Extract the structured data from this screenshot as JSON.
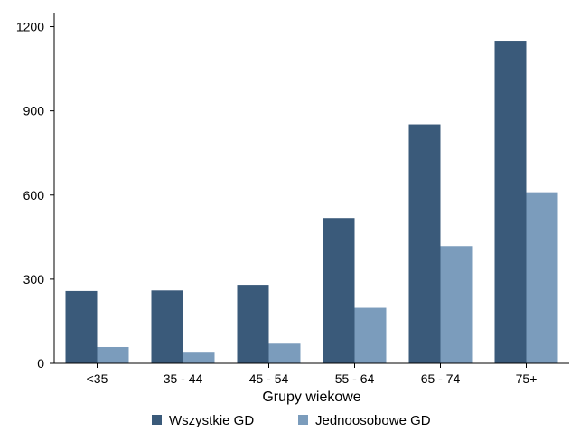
{
  "chart_data": {
    "type": "bar",
    "title": "",
    "xlabel": "Grupy wiekowe",
    "ylabel": "",
    "categories": [
      "<35",
      "35 - 44",
      "45 - 54",
      "55 - 64",
      "65 - 74",
      "75+"
    ],
    "series": [
      {
        "name": "Wszystkie GD",
        "values": [
          258,
          260,
          280,
          518,
          852,
          1150
        ],
        "color": "#3a5a7a"
      },
      {
        "name": "Jednoosobowe GD",
        "values": [
          58,
          38,
          70,
          198,
          418,
          610
        ],
        "color": "#7b9cbc"
      }
    ],
    "ylim": [
      0,
      1250
    ],
    "yticks": [
      0,
      300,
      600,
      900,
      1200
    ],
    "grid": false,
    "legend_position": "bottom"
  }
}
